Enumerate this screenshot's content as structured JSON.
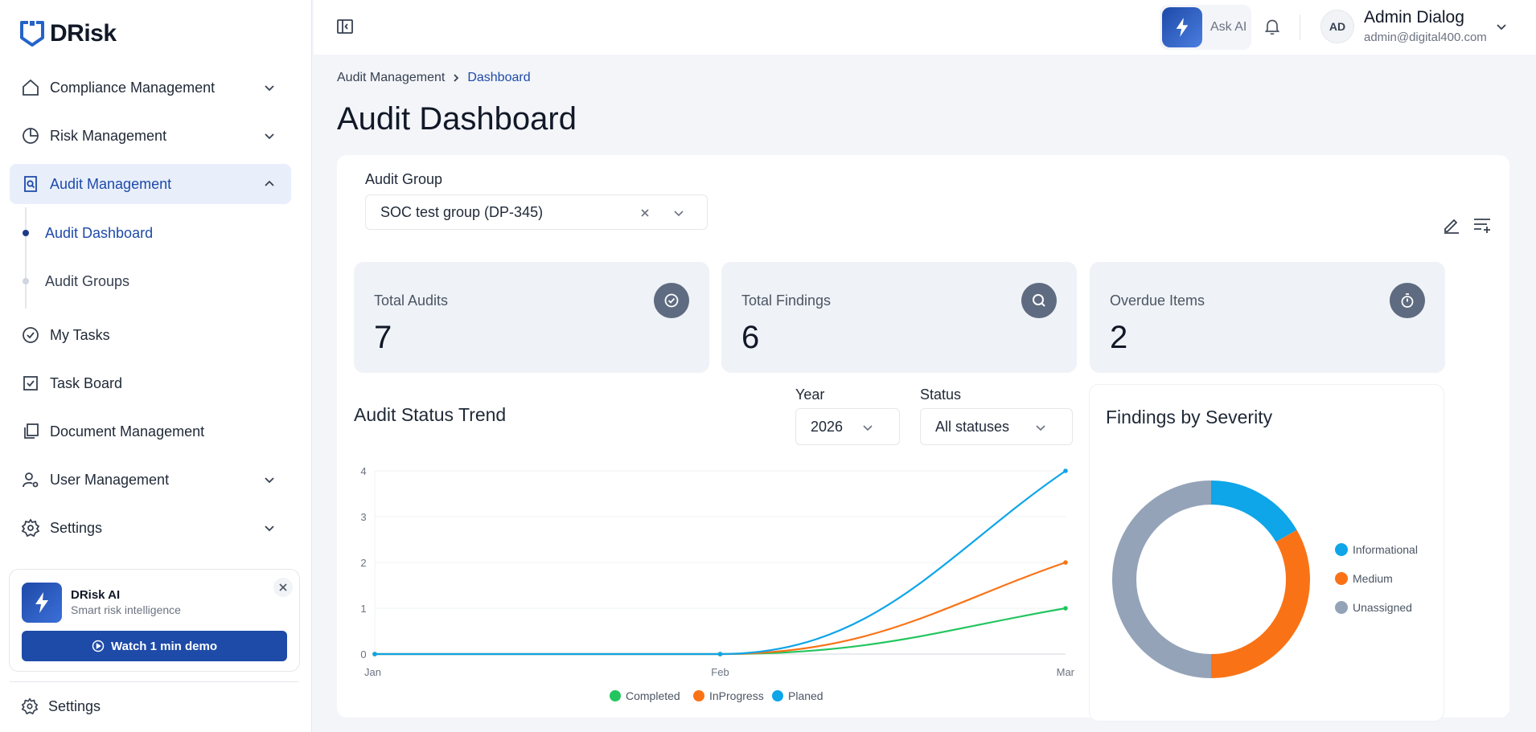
{
  "app": {
    "logo_text": "DRisk"
  },
  "sidebar": {
    "items": [
      {
        "label": "Compliance Management",
        "icon": "home-icon",
        "expandable": true
      },
      {
        "label": "Risk Management",
        "icon": "pie-chart-icon",
        "expandable": true
      },
      {
        "label": "Audit Management",
        "icon": "audit-search-icon",
        "expandable": true,
        "active": true
      },
      {
        "label": "My Tasks",
        "icon": "check-circle-icon"
      },
      {
        "label": "Task Board",
        "icon": "checkbox-icon"
      },
      {
        "label": "Document Management",
        "icon": "documents-icon"
      },
      {
        "label": "User Management",
        "icon": "user-gear-icon",
        "expandable": true
      },
      {
        "label": "Settings",
        "icon": "gear-icon",
        "expandable": true
      }
    ],
    "sub_items": [
      {
        "label": "Audit Dashboard",
        "active": true
      },
      {
        "label": "Audit Groups"
      }
    ],
    "ai_card": {
      "title": "DRisk AI",
      "subtitle": "Smart risk intelligence",
      "button_label": "Watch 1 min demo"
    },
    "bottom_settings_label": "Settings"
  },
  "header": {
    "ask_ai_label": "Ask AI",
    "avatar_initials": "AD",
    "user_name": "Admin Dialog",
    "user_email": "admin@digital400.com"
  },
  "breadcrumb": {
    "parent": "Audit Management",
    "current": "Dashboard"
  },
  "page_title": "Audit Dashboard",
  "audit_group": {
    "label": "Audit Group",
    "value": "SOC test group (DP-345)"
  },
  "stats": [
    {
      "label": "Total Audits",
      "value": "7",
      "icon": "check-circle-icon"
    },
    {
      "label": "Total Findings",
      "value": "6",
      "icon": "search-icon"
    },
    {
      "label": "Overdue Items",
      "value": "2",
      "icon": "stopwatch-icon"
    }
  ],
  "trend": {
    "title": "Audit Status Trend",
    "year_label": "Year",
    "year_value": "2026",
    "status_label": "Status",
    "status_value": "All statuses"
  },
  "severity": {
    "title": "Findings by Severity"
  },
  "chart_data": [
    {
      "type": "line",
      "categories": [
        "Jan",
        "Feb",
        "Mar"
      ],
      "ylim": [
        0,
        4
      ],
      "yticks": [
        0,
        1,
        2,
        3,
        4
      ],
      "grid": true,
      "legend": "bottom",
      "series": [
        {
          "name": "Completed",
          "values": [
            0,
            0,
            1
          ],
          "color": "#22c55e"
        },
        {
          "name": "InProgress",
          "values": [
            0,
            0,
            2
          ],
          "color": "#f97316"
        },
        {
          "name": "Planed",
          "values": [
            0,
            0,
            4
          ],
          "color": "#0ea5e9"
        }
      ]
    },
    {
      "type": "pie",
      "donut": true,
      "legend": "right",
      "slices": [
        {
          "name": "Informational",
          "value": 1,
          "color": "#0ea5e9"
        },
        {
          "name": "Medium",
          "value": 2,
          "color": "#f97316"
        },
        {
          "name": "Unassigned",
          "value": 3,
          "color": "#94a3b8"
        }
      ]
    }
  ]
}
